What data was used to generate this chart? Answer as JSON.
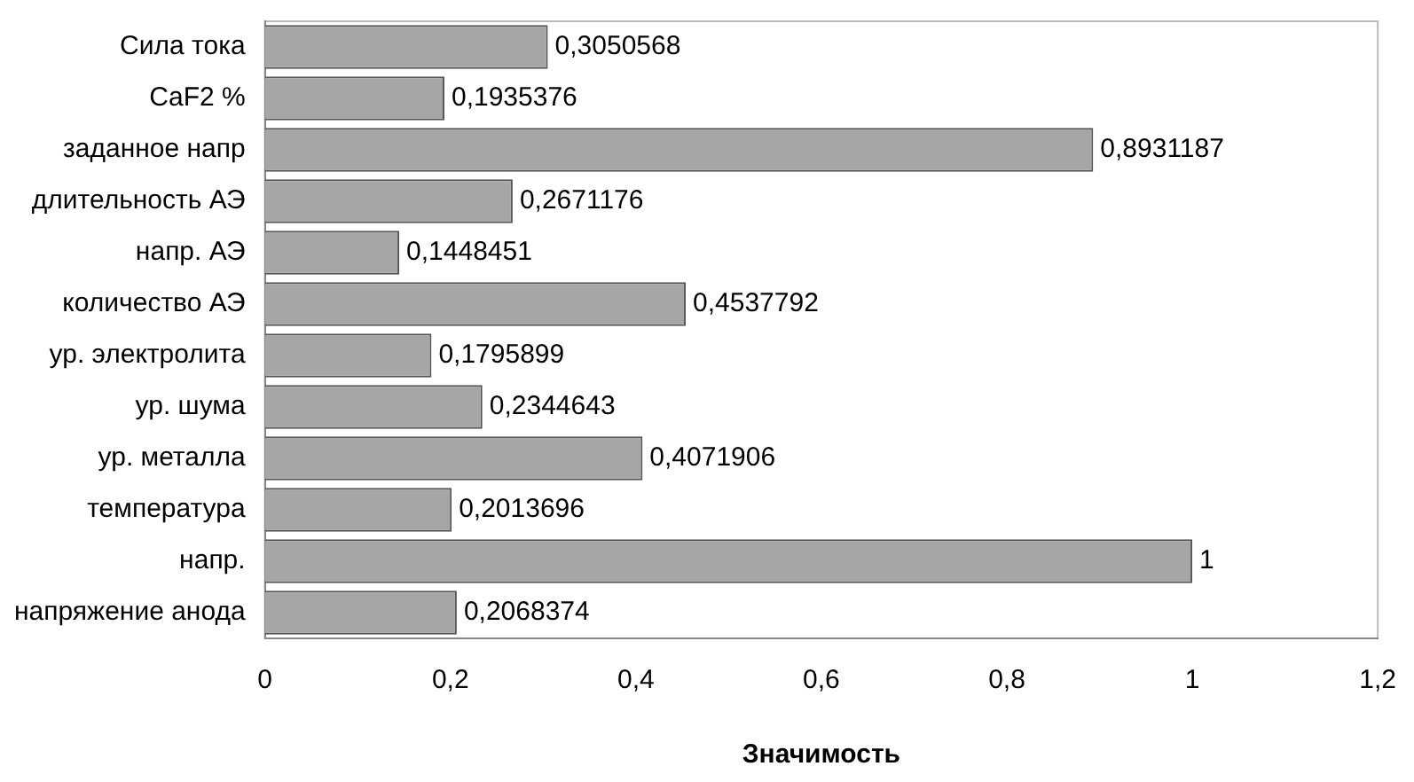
{
  "chart_data": {
    "type": "bar",
    "orientation": "horizontal",
    "xlabel": "Значимость",
    "categories": [
      "Сила тока",
      "CaF2 %",
      "заданное напр",
      "длительность АЭ",
      "напр. АЭ",
      "количество АЭ",
      "ур. электролита",
      "ур. шума",
      "ур. металла",
      "температура",
      "напр.",
      "напряжение анода"
    ],
    "values": [
      0.3050568,
      0.1935376,
      0.8931187,
      0.2671176,
      0.1448451,
      0.4537792,
      0.1795899,
      0.2344643,
      0.4071906,
      0.2013696,
      1,
      0.2068374
    ],
    "value_labels": [
      "0,3050568",
      "0,1935376",
      "0,8931187",
      "0,2671176",
      "0,1448451",
      "0,4537792",
      "0,1795899",
      "0,2344643",
      "0,4071906",
      "0,2013696",
      "1",
      "0,2068374"
    ],
    "color": "#a6a6a6",
    "xlim": [
      0,
      1.2
    ],
    "xticks": [
      0,
      {
        "value": 0.2,
        "label": "0,2"
      },
      {
        "value": 0.4,
        "label": "0,4"
      },
      {
        "value": 0.6,
        "label": "0,6"
      },
      {
        "value": 0.8,
        "label": "0,8"
      },
      1,
      {
        "value": 1.2,
        "label": "1,2"
      }
    ],
    "grid": false,
    "legend": false
  }
}
